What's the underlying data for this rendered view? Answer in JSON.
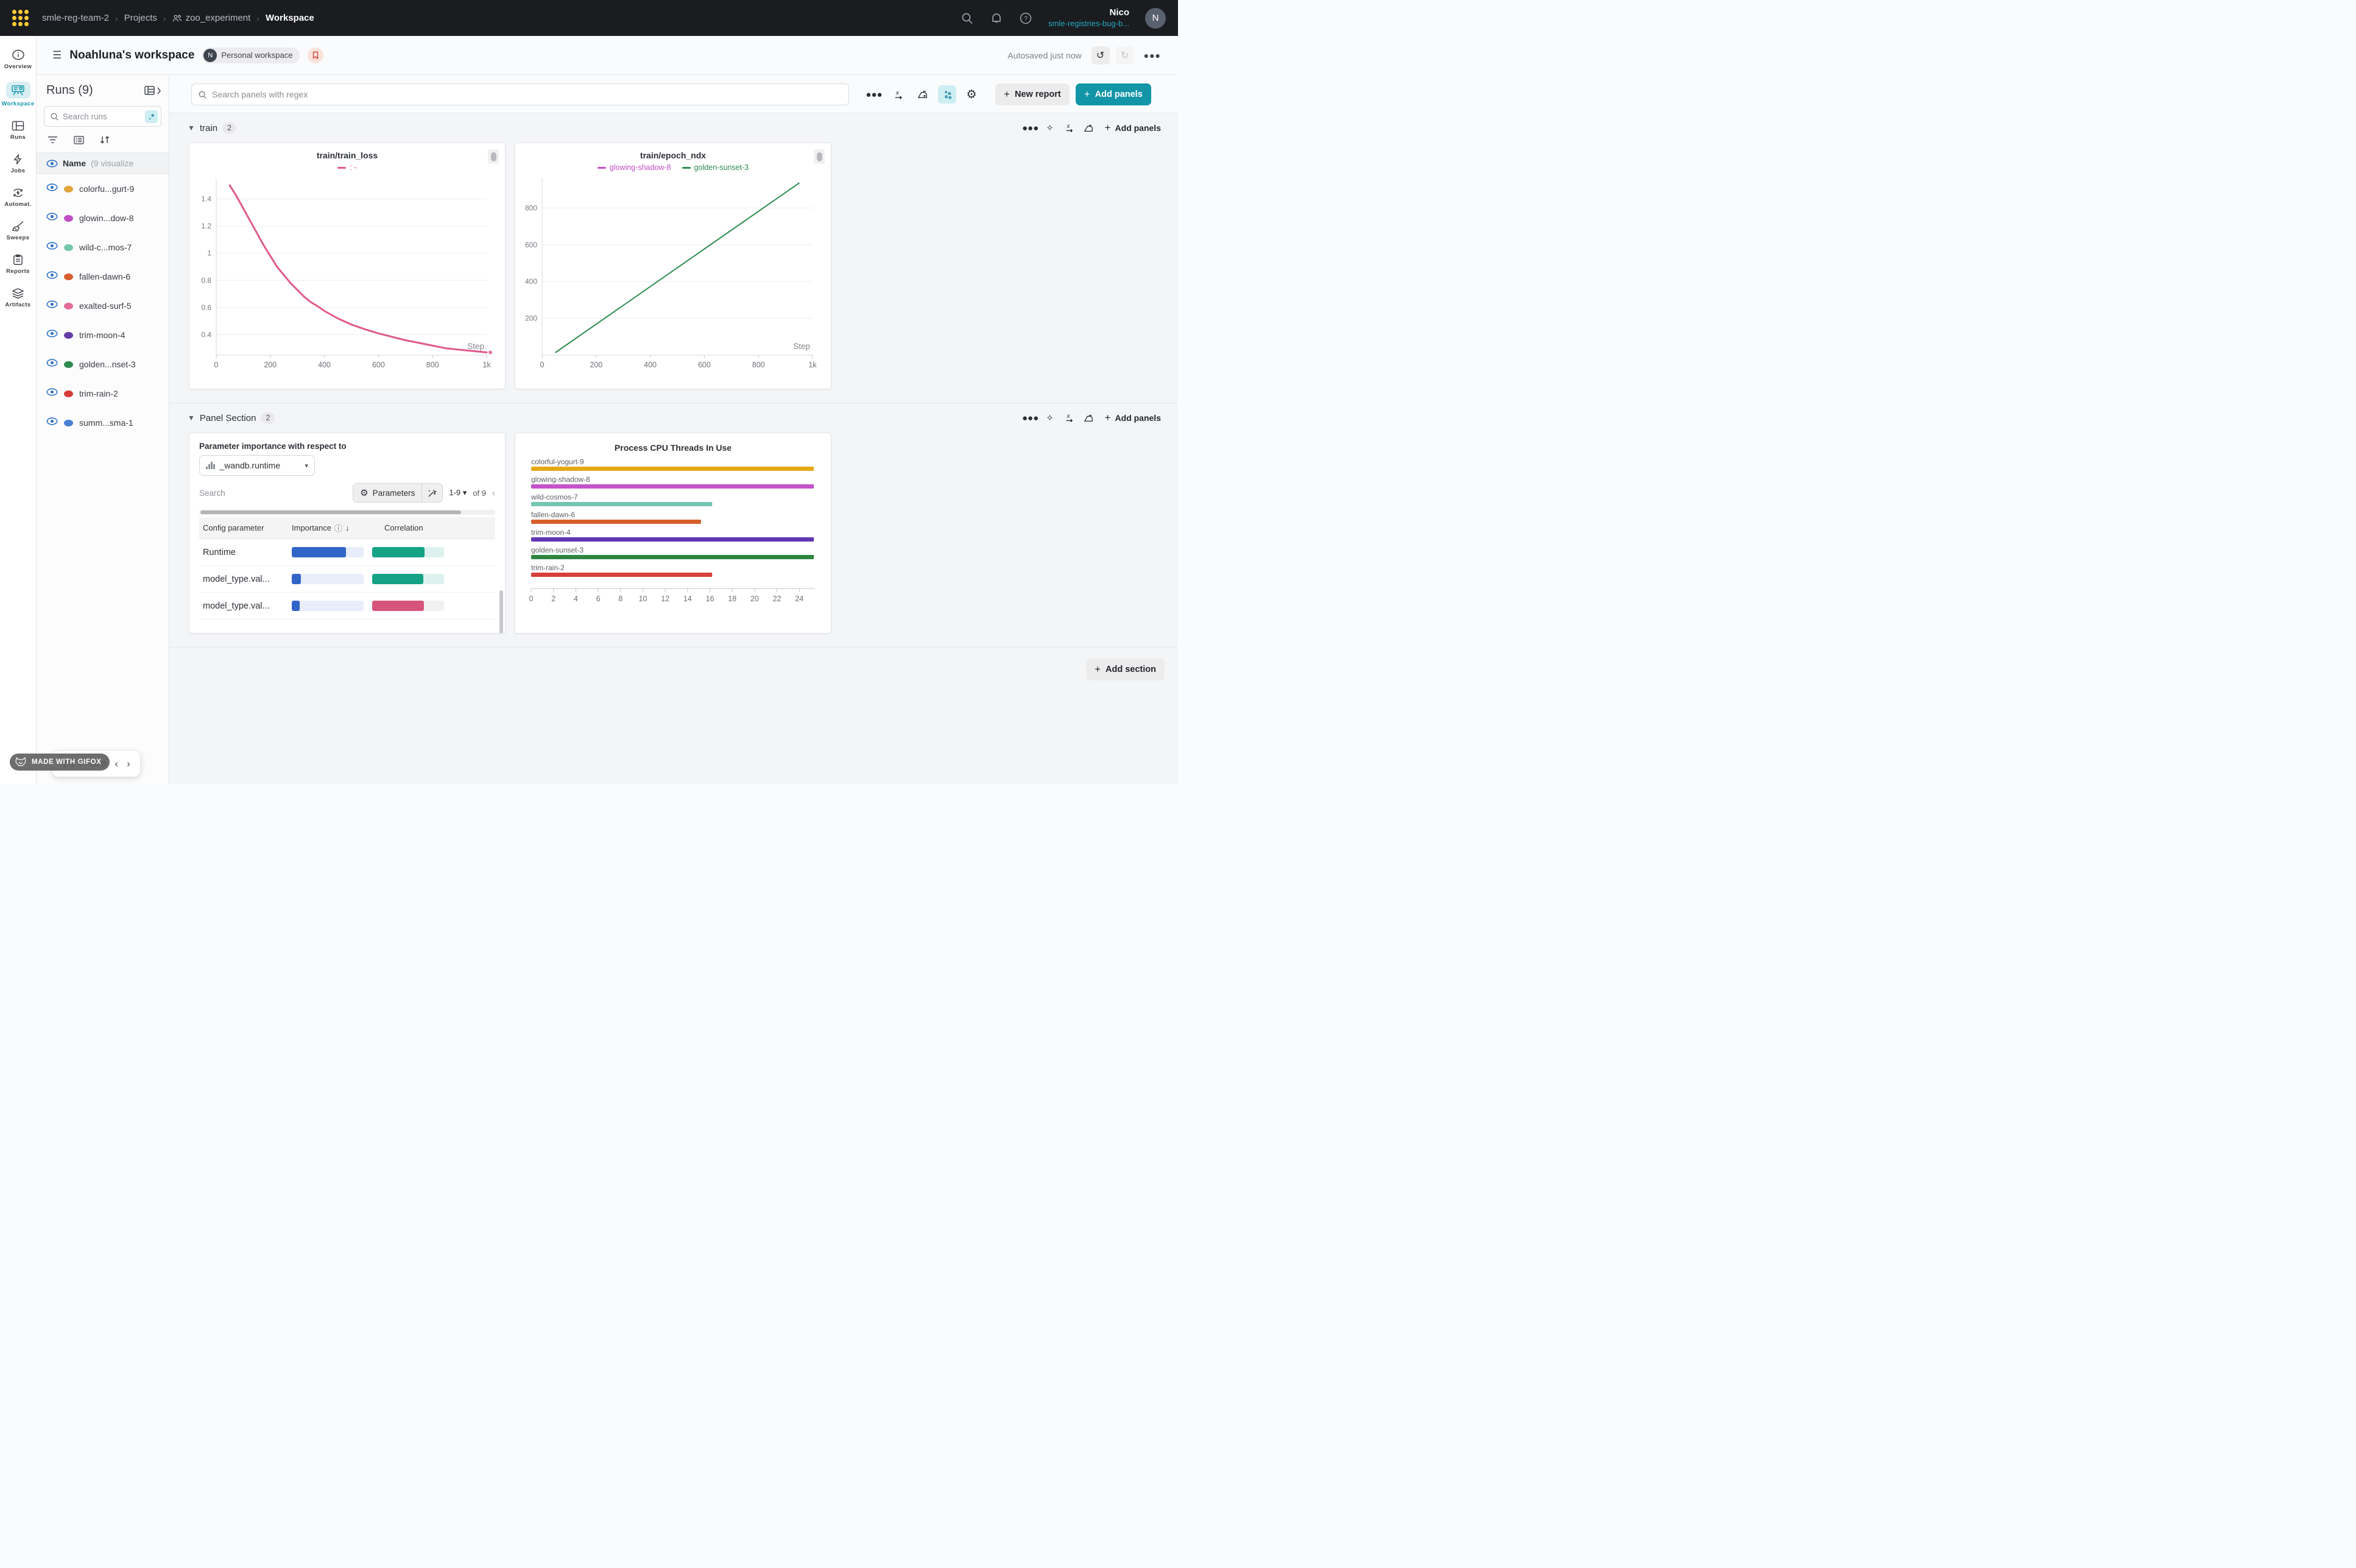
{
  "topbar": {
    "breadcrumb": [
      {
        "label": "smle-reg-team-2"
      },
      {
        "label": "Projects"
      },
      {
        "label": "zoo_experiment",
        "icon": "team-icon"
      },
      {
        "label": "Workspace",
        "current": true
      }
    ],
    "user_name": "Nico",
    "user_team": "smle-registries-bug-b...",
    "avatar_initial": "N"
  },
  "nav_rail": {
    "items": [
      {
        "label": "Overview",
        "icon": "info"
      },
      {
        "label": "Workspace",
        "icon": "workspace",
        "active": true
      },
      {
        "label": "Runs",
        "icon": "table"
      },
      {
        "label": "Jobs",
        "icon": "bolt"
      },
      {
        "label": "Automat.",
        "icon": "automation"
      },
      {
        "label": "Sweeps",
        "icon": "broom"
      },
      {
        "label": "Reports",
        "icon": "clipboard"
      },
      {
        "label": "Artifacts",
        "icon": "layers"
      }
    ]
  },
  "workspace_header": {
    "title": "Noahluna's workspace",
    "avatar_initial": "N",
    "badge": "Personal workspace",
    "autosave": "Autosaved just now"
  },
  "runs_sidebar": {
    "title": "Runs (9)",
    "search_placeholder": "Search runs",
    "regex_chip": ".*",
    "header_name": "Name",
    "header_note": "(9 visualize",
    "runs": [
      {
        "name": "colorfu...gurt-9",
        "color": "#e0a63a"
      },
      {
        "name": "glowin...dow-8",
        "color": "#c14ec4"
      },
      {
        "name": "wild-c...mos-7",
        "color": "#72c6ab"
      },
      {
        "name": "fallen-dawn-6",
        "color": "#d85c2e"
      },
      {
        "name": "exalted-surf-5",
        "color": "#e46a97"
      },
      {
        "name": "trim-moon-4",
        "color": "#673ba6"
      },
      {
        "name": "golden...nset-3",
        "color": "#2d8a50"
      },
      {
        "name": "trim-rain-2",
        "color": "#d63b36"
      },
      {
        "name": "summ...sma-1",
        "color": "#4a7fd4"
      }
    ]
  },
  "panel_toolbar": {
    "search_placeholder": "Search panels with regex",
    "new_report": "New report",
    "add_panels": "Add panels"
  },
  "sections": [
    {
      "name": "train",
      "count": "2",
      "add_panels_label": "Add panels"
    },
    {
      "name": "Panel Section",
      "count": "2",
      "add_panels_label": "Add panels"
    }
  ],
  "param_panel": {
    "title": "Parameter importance with respect to",
    "dropdown_value": "_wandb.runtime",
    "search_placeholder": "Search",
    "parameters_label": "Parameters",
    "pagination_range": "1-9",
    "pagination_of": "of 9",
    "columns": [
      "Config parameter",
      "Importance",
      "Correlation"
    ],
    "importance_color": "#3265c8",
    "importance_track": "#e7edf9",
    "rows": [
      {
        "param": "Runtime",
        "importance": 0.75,
        "correlation": 0.73,
        "corr_color": "#16a385",
        "corr_track": "#ddf2ee"
      },
      {
        "param": "model_type.val...",
        "importance": 0.13,
        "correlation": 0.71,
        "corr_color": "#16a385",
        "corr_track": "#ddf2ee"
      },
      {
        "param": "model_type.val...",
        "importance": 0.11,
        "correlation": 0.72,
        "corr_color": "#d6547b",
        "corr_track": "#f1f1f2"
      }
    ]
  },
  "footer": {
    "add_section": "Add section",
    "pagination_range": "1-9",
    "pagination_of": "of 9",
    "gifox_label": "MADE WITH GIFOX"
  },
  "chart_data": [
    {
      "type": "line",
      "title": "train/train_loss",
      "xlabel": "Step",
      "ylabel": "",
      "xlim": [
        0,
        1000
      ],
      "ylim": [
        0.25,
        1.55
      ],
      "x_ticks": [
        [
          0,
          "0"
        ],
        [
          200,
          "200"
        ],
        [
          400,
          "400"
        ],
        [
          600,
          "600"
        ],
        [
          800,
          "800"
        ],
        [
          1000,
          "1k"
        ]
      ],
      "y_ticks": [
        [
          0.4,
          "0.4"
        ],
        [
          0.6,
          "0.6"
        ],
        [
          0.8,
          "0.8"
        ],
        [
          1,
          "1"
        ],
        [
          1.2,
          "1.2"
        ],
        [
          1.4,
          "1.4"
        ]
      ],
      "grid": true,
      "legend": [
        {
          "label": ": -",
          "color": "#e0598c"
        }
      ],
      "series": [
        {
          "name": "train_loss",
          "color": "#e0598c",
          "width": 3,
          "end_dot": true,
          "x": [
            50,
            75,
            100,
            125,
            150,
            175,
            200,
            225,
            250,
            275,
            300,
            325,
            350,
            375,
            400,
            450,
            500,
            550,
            600,
            650,
            700,
            750,
            800,
            850,
            900,
            950,
            1000
          ],
          "y": [
            1.5,
            1.42,
            1.33,
            1.24,
            1.15,
            1.06,
            0.98,
            0.9,
            0.84,
            0.78,
            0.73,
            0.68,
            0.64,
            0.61,
            0.575,
            0.52,
            0.475,
            0.44,
            0.41,
            0.385,
            0.36,
            0.34,
            0.32,
            0.3,
            0.29,
            0.28,
            0.27
          ]
        }
      ]
    },
    {
      "type": "line",
      "title": "train/epoch_ndx",
      "xlabel": "Step",
      "ylabel": "",
      "xlim": [
        0,
        1000
      ],
      "ylim": [
        0,
        960
      ],
      "x_ticks": [
        [
          0,
          "0"
        ],
        [
          200,
          "200"
        ],
        [
          400,
          "400"
        ],
        [
          600,
          "600"
        ],
        [
          800,
          "800"
        ],
        [
          1000,
          "1k"
        ]
      ],
      "y_ticks": [
        [
          200,
          "200"
        ],
        [
          400,
          "400"
        ],
        [
          600,
          "600"
        ],
        [
          800,
          "800"
        ]
      ],
      "grid": true,
      "legend": [
        {
          "label": "glowing-shadow-8",
          "color": "#c14ec4"
        },
        {
          "label": "golden-sunset-3",
          "color": "#2e8b50"
        }
      ],
      "series": [
        {
          "name": "golden-sunset-3",
          "color": "#2e8b50",
          "width": 2,
          "x": [
            50,
            950
          ],
          "y": [
            15,
            935
          ]
        }
      ]
    },
    {
      "type": "bar-horizontal",
      "title": "Process CPU Threads In Use",
      "xlim": [
        0,
        25.4
      ],
      "x_ticks": [
        0,
        2,
        4,
        6,
        8,
        10,
        12,
        14,
        16,
        18,
        20,
        22,
        24
      ],
      "categories": [
        "colorful-yogurt-9",
        "glowing-shadow-8",
        "wild-cosmos-7",
        "fallen-dawn-6",
        "trim-moon-4",
        "golden-sunset-3",
        "trim-rain-2"
      ],
      "values": [
        25.3,
        25.3,
        16.2,
        15.2,
        25.3,
        25.3,
        16.2
      ],
      "colors": [
        "#e6a817",
        "#c653cc",
        "#74c5b2",
        "#d95f2b",
        "#6036b3",
        "#2e8540",
        "#d7403a"
      ]
    }
  ]
}
